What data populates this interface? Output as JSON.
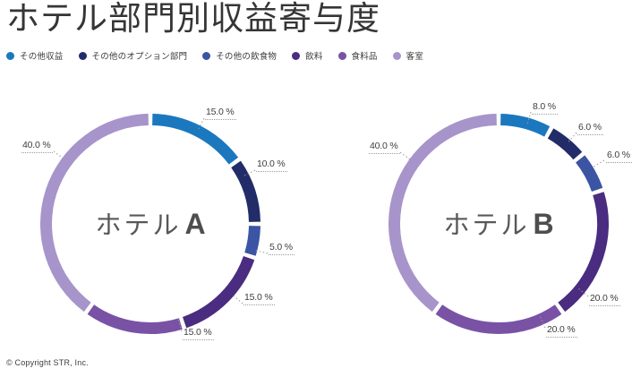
{
  "title": "ホテル部門別収益寄与度",
  "copyright": "© Copyright STR, Inc.",
  "legend": {
    "items": [
      {
        "label": "その他収益",
        "color": "#1b78be"
      },
      {
        "label": "その他のオプション部門",
        "color": "#212c68"
      },
      {
        "label": "その他の飲食物",
        "color": "#3c54a4"
      },
      {
        "label": "飲料",
        "color": "#4a2c80"
      },
      {
        "label": "食料品",
        "color": "#7952a6"
      },
      {
        "label": "客室",
        "color": "#a794ca"
      }
    ]
  },
  "chart_data": [
    {
      "type": "pie",
      "subtype": "donut",
      "title": "ホテルA",
      "unit": "%",
      "start_angle_deg": 0,
      "direction": "clockwise",
      "categories": [
        "その他収益",
        "その他のオプション部門",
        "その他の飲食物",
        "飲料",
        "食料品",
        "客室"
      ],
      "values": [
        15.0,
        10.0,
        5.0,
        15.0,
        15.0,
        40.0
      ],
      "labels": [
        "15.0 %",
        "10.0 %",
        "5.0 %",
        "15.0 %",
        "15.0 %",
        "40.0 %"
      ],
      "colors": [
        "#1b78be",
        "#212c68",
        "#3c54a4",
        "#4a2c80",
        "#7952a6",
        "#a794ca"
      ]
    },
    {
      "type": "pie",
      "subtype": "donut",
      "title": "ホテルB",
      "unit": "%",
      "start_angle_deg": 0,
      "direction": "clockwise",
      "categories": [
        "その他収益",
        "その他のオプション部門",
        "その他の飲食物",
        "飲料",
        "食料品",
        "客室"
      ],
      "values": [
        8.0,
        6.0,
        6.0,
        20.0,
        20.0,
        40.0
      ],
      "labels": [
        "8.0 %",
        "6.0 %",
        "6.0 %",
        "20.0 %",
        "20.0 %",
        "40.0 %"
      ],
      "colors": [
        "#1b78be",
        "#212c68",
        "#3c54a4",
        "#4a2c80",
        "#7952a6",
        "#a794ca"
      ]
    }
  ]
}
